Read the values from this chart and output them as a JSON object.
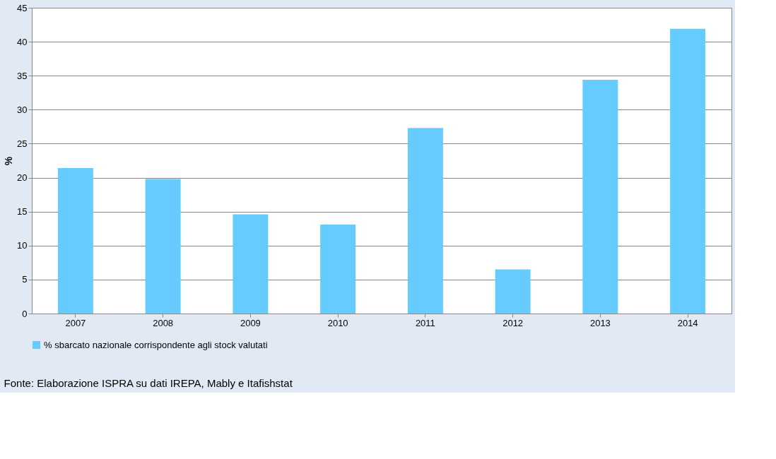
{
  "chart_data": {
    "type": "bar",
    "categories": [
      "2007",
      "2008",
      "2009",
      "2010",
      "2011",
      "2012",
      "2013",
      "2014"
    ],
    "series": [
      {
        "name": "% sbarcato nazionale corrispondente agli stock valutati",
        "color": "#66ccff",
        "values": [
          21.4,
          19.8,
          14.6,
          13.1,
          27.3,
          6.5,
          34.4,
          41.9
        ]
      }
    ],
    "ylabel": "%",
    "ylim": [
      0,
      45
    ],
    "yticks": [
      0,
      5,
      10,
      15,
      20,
      25,
      30,
      35,
      40,
      45
    ],
    "grid": "y",
    "legend": "bottom",
    "annotations": [
      "Fonte: Elaborazione ISPRA su dati IREPA, Mably e Itafishstat"
    ]
  }
}
